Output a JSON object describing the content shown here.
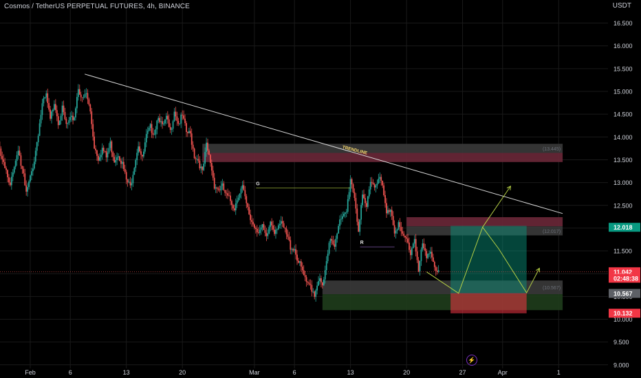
{
  "header": {
    "title": "Cosmos / TetherUS PERPETUAL FUTURES, 4h, BINANCE",
    "unit": "USDT"
  },
  "colors": {
    "background": "#000000",
    "up": "#26a69a",
    "down": "#ef5350",
    "axis_text": "#d1d4dc",
    "grid": "#1a1a1a",
    "trendline": "#d9d9d9",
    "accent_teal": "#089981",
    "accent_red": "#f23645",
    "projection": "#b5cf45"
  },
  "chart_data": {
    "type": "candlestick",
    "ylim": [
      8.9,
      16.95
    ],
    "y_ticks": [
      "16.500",
      "16.000",
      "15.500",
      "15.000",
      "14.500",
      "14.000",
      "13.500",
      "13.000",
      "12.500",
      "12.000",
      "11.500",
      "11.000",
      "10.500",
      "10.000",
      "9.500",
      "9.000"
    ],
    "x_ticks": [
      {
        "label": "Feb",
        "day": 1
      },
      {
        "label": "6",
        "day": 6
      },
      {
        "label": "13",
        "day": 13
      },
      {
        "label": "20",
        "day": 20
      },
      {
        "label": "Mar",
        "day": 29
      },
      {
        "label": "6",
        "day": 34
      },
      {
        "label": "13",
        "day": 41
      },
      {
        "label": "20",
        "day": 48
      },
      {
        "label": "27",
        "day": 55
      },
      {
        "label": "Apr",
        "day": 60
      },
      {
        "label": "1",
        "day": 67
      }
    ],
    "price_path": [
      [
        -3.0,
        13.9
      ],
      [
        -2.5,
        13.55
      ],
      [
        -2.0,
        13.2
      ],
      [
        -1.5,
        12.9
      ],
      [
        -1.0,
        13.4
      ],
      [
        -0.5,
        13.75
      ],
      [
        0.0,
        13.3
      ],
      [
        0.5,
        12.75
      ],
      [
        1.0,
        13.1
      ],
      [
        1.5,
        13.5
      ],
      [
        2.0,
        14.1
      ],
      [
        2.5,
        14.7
      ],
      [
        3.0,
        14.9
      ],
      [
        3.5,
        14.35
      ],
      [
        4.0,
        14.8
      ],
      [
        4.5,
        14.35
      ],
      [
        5.0,
        14.6
      ],
      [
        5.5,
        14.25
      ],
      [
        6.0,
        14.35
      ],
      [
        6.5,
        14.45
      ],
      [
        7.0,
        15.1
      ],
      [
        7.5,
        14.8
      ],
      [
        8.0,
        14.95
      ],
      [
        8.5,
        14.55
      ],
      [
        9.0,
        13.8
      ],
      [
        9.5,
        13.55
      ],
      [
        10.0,
        13.75
      ],
      [
        10.5,
        13.55
      ],
      [
        11.0,
        13.85
      ],
      [
        11.5,
        13.5
      ],
      [
        12.0,
        13.65
      ],
      [
        12.5,
        13.4
      ],
      [
        13.0,
        13.05
      ],
      [
        13.5,
        12.9
      ],
      [
        14.0,
        13.4
      ],
      [
        14.5,
        13.85
      ],
      [
        15.0,
        13.5
      ],
      [
        15.5,
        14.0
      ],
      [
        16.0,
        14.2
      ],
      [
        16.5,
        14.1
      ],
      [
        17.0,
        14.5
      ],
      [
        17.5,
        14.2
      ],
      [
        18.0,
        14.4
      ],
      [
        18.5,
        14.1
      ],
      [
        19.0,
        14.6
      ],
      [
        19.5,
        14.3
      ],
      [
        20.0,
        14.45
      ],
      [
        20.5,
        14.1
      ],
      [
        21.0,
        14.05
      ],
      [
        21.5,
        13.6
      ],
      [
        22.0,
        13.5
      ],
      [
        22.5,
        13.2
      ],
      [
        23.0,
        13.8
      ],
      [
        23.5,
        13.45
      ],
      [
        24.0,
        12.95
      ],
      [
        24.5,
        12.85
      ],
      [
        25.0,
        12.9
      ],
      [
        25.5,
        12.7
      ],
      [
        26.0,
        12.6
      ],
      [
        26.5,
        12.45
      ],
      [
        27.0,
        12.75
      ],
      [
        27.5,
        12.9
      ],
      [
        28.0,
        12.5
      ],
      [
        28.5,
        12.2
      ],
      [
        29.0,
        12.05
      ],
      [
        29.5,
        11.95
      ],
      [
        30.0,
        12.0
      ],
      [
        30.5,
        11.75
      ],
      [
        31.0,
        12.15
      ],
      [
        31.5,
        11.95
      ],
      [
        32.0,
        12.1
      ],
      [
        32.5,
        12.05
      ],
      [
        33.0,
        11.85
      ],
      [
        33.5,
        11.6
      ],
      [
        34.0,
        11.55
      ],
      [
        34.5,
        11.25
      ],
      [
        35.0,
        11.05
      ],
      [
        35.5,
        10.75
      ],
      [
        36.0,
        10.75
      ],
      [
        36.5,
        10.55
      ],
      [
        37.0,
        10.9
      ],
      [
        37.5,
        10.7
      ],
      [
        38.0,
        11.2
      ],
      [
        38.5,
        11.8
      ],
      [
        39.0,
        11.65
      ],
      [
        39.5,
        12.1
      ],
      [
        40.0,
        12.2
      ],
      [
        40.5,
        12.35
      ],
      [
        41.0,
        13.1
      ],
      [
        41.5,
        12.7
      ],
      [
        42.0,
        11.95
      ],
      [
        42.5,
        12.65
      ],
      [
        43.0,
        12.45
      ],
      [
        43.5,
        13.1
      ],
      [
        44.0,
        12.9
      ],
      [
        44.5,
        13.15
      ],
      [
        45.0,
        12.9
      ],
      [
        45.5,
        12.3
      ],
      [
        46.0,
        12.45
      ],
      [
        46.5,
        11.95
      ],
      [
        47.0,
        12.1
      ],
      [
        47.5,
        11.8
      ],
      [
        48.0,
        11.75
      ],
      [
        48.5,
        11.45
      ],
      [
        49.0,
        11.8
      ],
      [
        49.5,
        11.05
      ],
      [
        50.0,
        11.65
      ],
      [
        50.5,
        11.3
      ],
      [
        51.0,
        11.55
      ],
      [
        51.5,
        11.15
      ],
      [
        52.0,
        11.04
      ]
    ],
    "trendline": {
      "x": [
        7.8,
        67.5
      ],
      "y": [
        15.38,
        12.32
      ],
      "label": "TRENDLINE"
    },
    "zones": [
      {
        "x": [
          22.5,
          67.5
        ],
        "y": [
          13.65,
          13.85
        ],
        "color": "#3a3a3a",
        "label": "(13.445)"
      },
      {
        "x": [
          22.5,
          67.5
        ],
        "y": [
          13.45,
          13.65
        ],
        "color": "#6b2838",
        "label": ""
      },
      {
        "x": [
          48.0,
          67.5
        ],
        "y": [
          12.04,
          12.24
        ],
        "color": "#6b2838",
        "label": ""
      },
      {
        "x": [
          48.0,
          67.5
        ],
        "y": [
          11.84,
          12.04
        ],
        "color": "#3a3a3a",
        "label": "(12.017)"
      },
      {
        "x": [
          37.5,
          67.5
        ],
        "y": [
          10.55,
          10.85
        ],
        "color": "#3a3a3a",
        "label": "(10.567)"
      },
      {
        "x": [
          37.5,
          67.5
        ],
        "y": [
          10.2,
          10.55
        ],
        "color": "#1f3d1c",
        "label": ""
      }
    ],
    "position": {
      "x": [
        53.5,
        63.0
      ],
      "entry": 10.57,
      "target": 12.05,
      "stop": 10.13
    },
    "projection": [
      [
        50.5,
        11.04
      ],
      [
        54.5,
        10.57
      ],
      [
        57.5,
        12.02
      ],
      [
        59.5,
        11.55
      ],
      [
        63.0,
        10.58
      ],
      [
        64.6,
        11.12
      ]
    ],
    "projection_alt": [
      [
        57.5,
        12.02
      ],
      [
        61.0,
        12.92
      ]
    ],
    "markers": [
      {
        "label": "G",
        "day": 29.2,
        "price": 12.97,
        "line_to": 41.0
      },
      {
        "label": "R",
        "day": 42.2,
        "price": 11.68,
        "line_to": 46.5
      }
    ],
    "price_labels": [
      {
        "text": "12.018",
        "price": 12.018,
        "color": "#089981"
      },
      {
        "text": "11.042",
        "price": 11.042,
        "color": "#f23645"
      },
      {
        "text": "02:48:38",
        "price": 10.9,
        "color": "#f23645"
      },
      {
        "text": "10.567",
        "price": 10.567,
        "color": "#5d6066"
      },
      {
        "text": "10.132",
        "price": 10.132,
        "color": "#f23645"
      }
    ]
  }
}
